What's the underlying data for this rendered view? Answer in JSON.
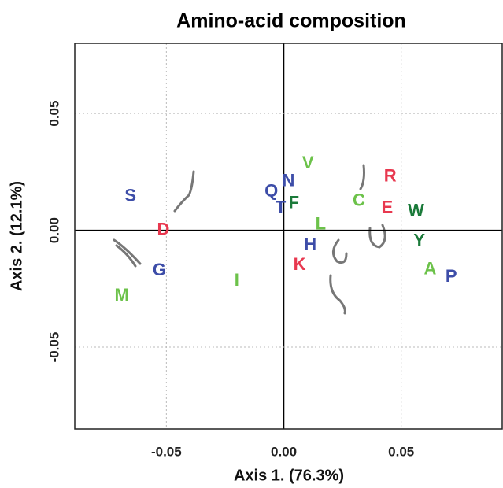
{
  "chart_data": {
    "type": "scatter",
    "title": "Amino-acid composition",
    "x_label": "Axis 1. (76.3%)",
    "y_label": "Axis 2. (12.1%)",
    "xlim": [
      -0.089,
      0.093
    ],
    "ylim": [
      -0.085,
      0.08
    ],
    "xticks": [
      -0.05,
      {
        "value": 0,
        "label": "0.00"
      },
      0.05
    ],
    "yticks": [
      -0.05,
      {
        "value": 0,
        "label": "0.00"
      },
      0.05
    ],
    "grid": true,
    "series": [
      {
        "color": "#3d4da8",
        "labels": [
          "S",
          "G",
          "Q",
          "N",
          "T",
          "H",
          "P"
        ],
        "x": [
          -0.0653,
          -0.053,
          -0.0053,
          0.002,
          -0.0013,
          0.0113,
          0.0713
        ],
        "values": [
          0.0144,
          -0.0174,
          0.0164,
          0.0208,
          0.0094,
          -0.0064,
          -0.0201
        ]
      },
      {
        "color": "#e8384f",
        "labels": [
          "D",
          "K",
          "R",
          "E"
        ],
        "x": [
          -0.0513,
          0.0067,
          0.0453,
          0.044
        ],
        "values": [
          0.0,
          -0.0151,
          0.0228,
          0.0094
        ]
      },
      {
        "color": "#6cc24a",
        "labels": [
          "M",
          "I",
          "V",
          "L",
          "C",
          "A"
        ],
        "x": [
          -0.069,
          -0.02,
          0.0103,
          0.0157,
          0.032,
          0.0623
        ],
        "values": [
          -0.0282,
          -0.0218,
          0.0285,
          0.0023,
          0.0124,
          -0.0168
        ]
      },
      {
        "color": "#1b7a3a",
        "labels": [
          "F",
          "W",
          "Y"
        ],
        "x": [
          0.0043,
          0.0563,
          0.0577
        ],
        "values": [
          0.0114,
          0.0081,
          -0.0047
        ]
      }
    ]
  }
}
